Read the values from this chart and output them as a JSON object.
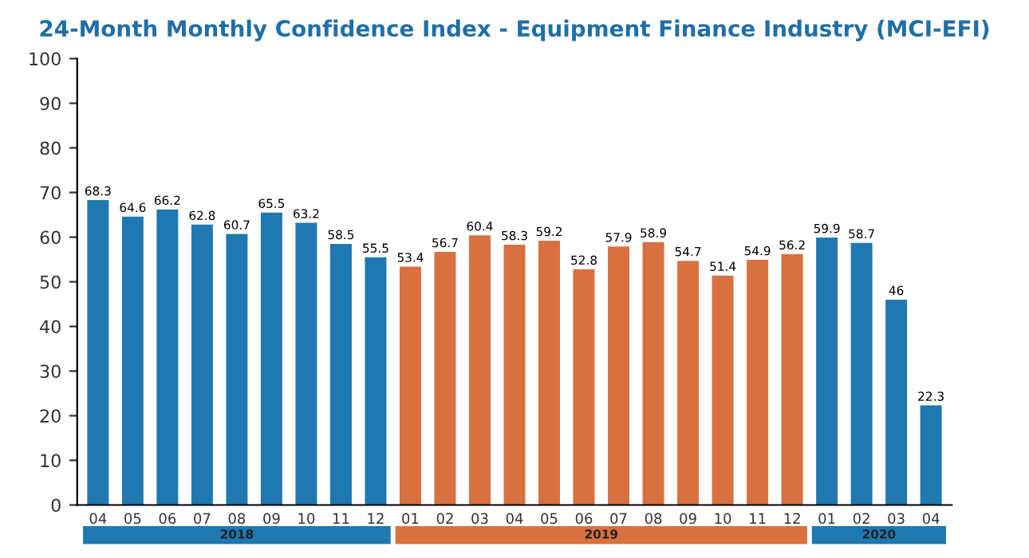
{
  "chart_data": {
    "type": "bar",
    "title": "24-Month Monthly Confidence Index - Equipment Finance Industry (MCI-EFI)",
    "categories": [
      "04",
      "05",
      "06",
      "07",
      "08",
      "09",
      "10",
      "11",
      "12",
      "01",
      "02",
      "03",
      "04",
      "05",
      "06",
      "07",
      "08",
      "09",
      "10",
      "11",
      "12",
      "01",
      "02",
      "03",
      "04"
    ],
    "values": [
      68.3,
      64.6,
      66.2,
      62.8,
      60.7,
      65.5,
      63.2,
      58.5,
      55.5,
      53.4,
      56.7,
      60.4,
      58.3,
      59.2,
      52.8,
      57.9,
      58.9,
      54.7,
      51.4,
      54.9,
      56.2,
      59.9,
      58.7,
      46,
      22.3
    ],
    "colors": [
      "#1f78b0",
      "#1f78b0",
      "#1f78b0",
      "#1f78b0",
      "#1f78b0",
      "#1f78b0",
      "#1f78b0",
      "#1f78b0",
      "#1f78b0",
      "#d9703f",
      "#d9703f",
      "#d9703f",
      "#d9703f",
      "#d9703f",
      "#d9703f",
      "#d9703f",
      "#d9703f",
      "#d9703f",
      "#d9703f",
      "#d9703f",
      "#d9703f",
      "#1f78b0",
      "#1f78b0",
      "#1f78b0",
      "#1f78b0"
    ],
    "annotations": [
      "2018",
      "2019",
      "2020"
    ],
    "data_labels": true,
    "grid": false,
    "ylim": [
      0,
      100
    ],
    "yticks": [
      0,
      10,
      20,
      30,
      40,
      50,
      60,
      70,
      80,
      90,
      100
    ]
  }
}
